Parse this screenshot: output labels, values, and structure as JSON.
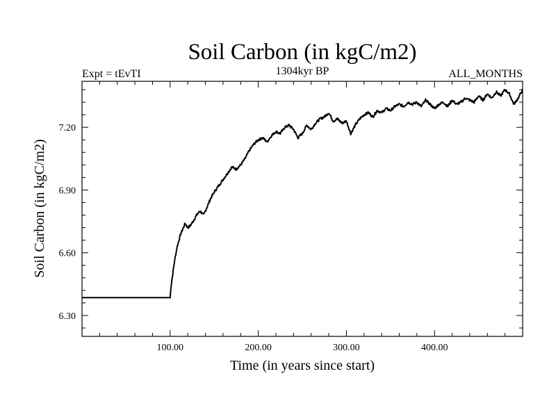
{
  "chart_data": {
    "type": "line",
    "title": "Soil Carbon (in kgC/m2)",
    "subtitle_left": "Expt = tEvTI",
    "subtitle_center": "1304kyr BP",
    "subtitle_right": "ALL_MONTHS",
    "xlabel": "Time (in years since start)",
    "ylabel": "Soil Carbon (in kgC/m2)",
    "xlim": [
      0,
      500
    ],
    "ylim": [
      6.2,
      7.42
    ],
    "xticks": [
      100,
      200,
      300,
      400
    ],
    "xtick_labels": [
      "100.00",
      "200.00",
      "300.00",
      "400.00"
    ],
    "yticks": [
      6.3,
      6.6,
      6.9,
      7.2
    ],
    "ytick_labels": [
      "6.30",
      "6.60",
      "6.90",
      "7.20"
    ],
    "grid": false,
    "series": [
      {
        "name": "Soil Carbon",
        "x": [
          0,
          100,
          101,
          103,
          105,
          108,
          112,
          117,
          120,
          123,
          126,
          130,
          134,
          138,
          142,
          146,
          150,
          155,
          160,
          165,
          170,
          175,
          180,
          185,
          190,
          195,
          200,
          205,
          210,
          215,
          220,
          225,
          230,
          235,
          240,
          245,
          250,
          255,
          260,
          265,
          270,
          275,
          280,
          285,
          290,
          295,
          300,
          305,
          310,
          315,
          320,
          325,
          330,
          335,
          340,
          345,
          350,
          355,
          360,
          365,
          370,
          375,
          380,
          385,
          390,
          395,
          400,
          405,
          410,
          415,
          420,
          425,
          430,
          435,
          440,
          445,
          450,
          455,
          460,
          465,
          470,
          475,
          480,
          485,
          490,
          495,
          500
        ],
        "values": [
          6.385,
          6.385,
          6.44,
          6.5,
          6.56,
          6.63,
          6.69,
          6.74,
          6.72,
          6.73,
          6.75,
          6.78,
          6.8,
          6.78,
          6.82,
          6.86,
          6.89,
          6.92,
          6.95,
          6.98,
          7.01,
          7.0,
          7.02,
          7.05,
          7.09,
          7.12,
          7.14,
          7.15,
          7.13,
          7.16,
          7.18,
          7.17,
          7.2,
          7.21,
          7.19,
          7.15,
          7.17,
          7.21,
          7.19,
          7.22,
          7.24,
          7.25,
          7.27,
          7.23,
          7.24,
          7.22,
          7.23,
          7.17,
          7.21,
          7.24,
          7.26,
          7.27,
          7.25,
          7.28,
          7.27,
          7.29,
          7.28,
          7.3,
          7.31,
          7.3,
          7.32,
          7.31,
          7.32,
          7.3,
          7.33,
          7.31,
          7.29,
          7.31,
          7.32,
          7.3,
          7.33,
          7.31,
          7.32,
          7.34,
          7.33,
          7.32,
          7.35,
          7.33,
          7.36,
          7.34,
          7.37,
          7.35,
          7.38,
          7.36,
          7.31,
          7.34,
          7.38
        ]
      }
    ]
  }
}
